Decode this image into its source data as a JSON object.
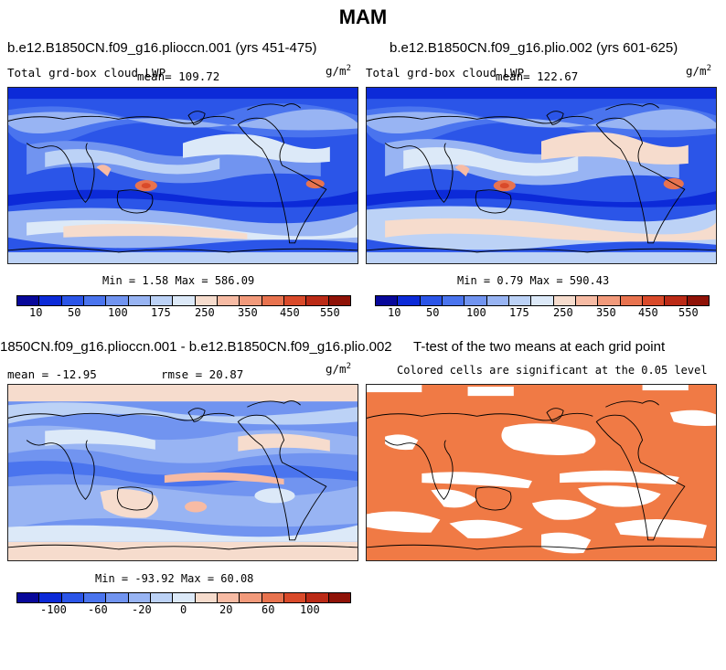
{
  "figure_title": "MAM",
  "panels": [
    {
      "title": "b.e12.B1850CN.f09_g16.pliocсn.001 (yrs 451-475)",
      "left_label": "Total grd-box cloud LWP",
      "mean_label": "mean= 109.72",
      "units": "g/m",
      "units_sup": "2",
      "stats": "Min =    1.58 Max = 586.09",
      "colorbar_ticks": [
        "10",
        "50",
        "100",
        "175",
        "250",
        "350",
        "450",
        "550"
      ]
    },
    {
      "title": "b.e12.B1850CN.f09_g16.plio.002 (yrs 601-625)",
      "left_label": "Total grd-box cloud LWP",
      "mean_label": "mean= 122.67",
      "units": "g/m",
      "units_sup": "2",
      "stats": "Min =    0.79 Max = 590.43",
      "colorbar_ticks": [
        "10",
        "50",
        "100",
        "175",
        "250",
        "350",
        "450",
        "550"
      ]
    },
    {
      "title": "1850CN.f09_g16.pliocсn.001 - b.e12.B1850CN.f09_g16.plio.002",
      "left_label": "mean = -12.95",
      "rmse_label": "rmse =  20.87",
      "units": "g/m",
      "units_sup": "2",
      "stats": "Min = -93.92 Max =  60.08",
      "colorbar_ticks": [
        "-100",
        "-60",
        "-20",
        "0",
        "20",
        "60",
        "100"
      ]
    },
    {
      "title": "T-test of the two means at each grid point",
      "subtitle": "Colored cells are significant at the 0.05 level"
    }
  ],
  "colors": {
    "sequential": [
      "#08089a",
      "#0c2ad8",
      "#2b55e8",
      "#4a74ee",
      "#7194f0",
      "#98b4f3",
      "#bcd2f6",
      "#dce9f8",
      "#f6dccd",
      "#f7bba4",
      "#f29a7b",
      "#e8734f",
      "#d94a2a",
      "#bb2a16",
      "#8f1207"
    ],
    "diverging": [
      "#08089a",
      "#0c2ad8",
      "#2b55e8",
      "#4a74ee",
      "#7194f0",
      "#98b4f3",
      "#bcd2f6",
      "#dce9f8",
      "#f6dccd",
      "#f7bba4",
      "#f29a7b",
      "#e8734f",
      "#d94a2a",
      "#bb2a16",
      "#8f1207"
    ],
    "ttest": "#f07a45"
  }
}
